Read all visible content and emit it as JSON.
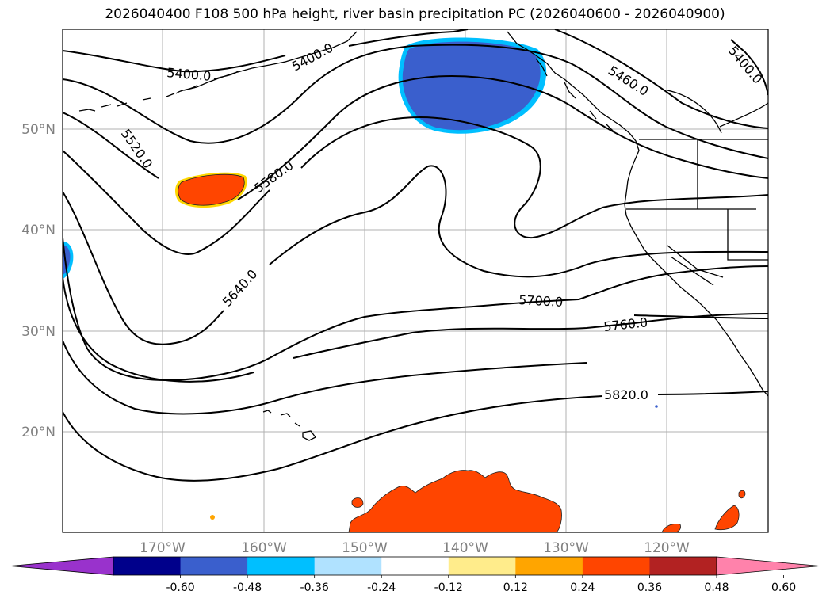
{
  "title": "2026040400 F108 500 hPa height, river basin precipitation PC (2026040600 - 2026040900)",
  "lat_labels": [
    "50°N",
    "40°N",
    "30°N",
    "20°N"
  ],
  "lon_labels": [
    "170°W",
    "160°W",
    "150°W",
    "140°W",
    "130°W",
    "120°W"
  ],
  "contour_labels": [
    "5400.0",
    "5400.0",
    "5460.0",
    "5400.0",
    "5520.0",
    "5580.0",
    "5640.0",
    "5700.0",
    "5760.0",
    "5820.0"
  ],
  "colorbar": {
    "ticks": [
      "-0.60",
      "-0.48",
      "-0.36",
      "-0.24",
      "-0.12",
      "0.12",
      "0.24",
      "0.36",
      "0.48",
      "0.60"
    ],
    "colors": [
      "#9932cc",
      "#00008b",
      "#3a5fcd",
      "#00bfff",
      "#b0e2ff",
      "#ffffff",
      "#ffec8b",
      "#ffa500",
      "#ff4500",
      "#b22222",
      "#ff82ab"
    ]
  }
}
